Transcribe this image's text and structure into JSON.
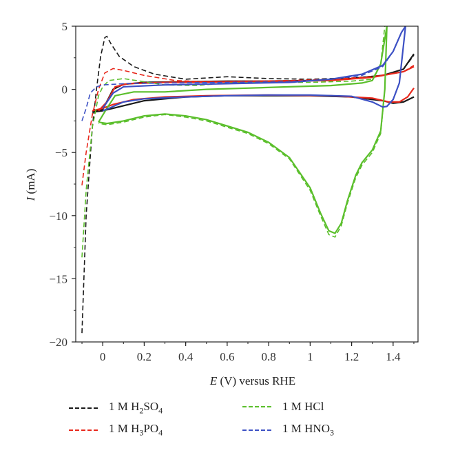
{
  "chart_data": {
    "type": "line",
    "title": "",
    "xlabel_italic": "E",
    "xlabel_rest": " (V) versus RHE",
    "ylabel_italic": "I",
    "ylabel_rest": " (mA)",
    "xlim": [
      -0.13,
      1.52
    ],
    "ylim": [
      -20,
      5
    ],
    "x_ticks": [
      "0",
      "0.2",
      "0.4",
      "0.6",
      "0.8",
      "1",
      "1.2",
      "1.4"
    ],
    "y_ticks": [
      "5",
      "0",
      "−5",
      "−10",
      "−15",
      "−20"
    ],
    "legend_placement": "below",
    "series": [
      {
        "name": "1 M H₂SO₄",
        "color": "#1a1a1a",
        "anodic": [
          [
            -0.1,
            -19.3
          ],
          [
            -0.08,
            -10
          ],
          [
            -0.05,
            -3
          ],
          [
            -0.03,
            0
          ],
          [
            -0.01,
            2.6
          ],
          [
            0.01,
            4.1
          ],
          [
            0.02,
            4.2
          ],
          [
            0.04,
            3.6
          ],
          [
            0.08,
            2.6
          ],
          [
            0.15,
            1.8
          ],
          [
            0.25,
            1.2
          ],
          [
            0.4,
            0.8
          ],
          [
            0.6,
            1.0
          ],
          [
            0.8,
            0.85
          ],
          [
            1.0,
            0.8
          ],
          [
            1.2,
            0.9
          ],
          [
            1.35,
            1.1
          ],
          [
            1.45,
            1.6
          ],
          [
            1.5,
            2.7
          ]
        ],
        "anodic_solid": [
          [
            -0.05,
            -1.8
          ],
          [
            0.0,
            -1.6
          ],
          [
            0.05,
            0.0
          ],
          [
            0.1,
            0.4
          ],
          [
            0.2,
            0.55
          ],
          [
            0.4,
            0.6
          ],
          [
            0.6,
            0.65
          ],
          [
            0.8,
            0.65
          ],
          [
            1.0,
            0.7
          ],
          [
            1.2,
            0.85
          ],
          [
            1.35,
            1.1
          ],
          [
            1.45,
            1.6
          ],
          [
            1.5,
            2.8
          ]
        ],
        "cathodic": [
          [
            1.5,
            -0.6
          ],
          [
            1.45,
            -1.0
          ],
          [
            1.4,
            -1.1
          ],
          [
            1.35,
            -0.9
          ],
          [
            1.2,
            -0.6
          ],
          [
            1.0,
            -0.5
          ],
          [
            0.8,
            -0.5
          ],
          [
            0.6,
            -0.5
          ],
          [
            0.4,
            -0.6
          ],
          [
            0.2,
            -0.9
          ],
          [
            0.05,
            -1.5
          ],
          [
            0.0,
            -1.7
          ],
          [
            -0.05,
            -1.8
          ]
        ]
      },
      {
        "name": "1 M H₃PO₄",
        "color": "#e8281c",
        "anodic": [
          [
            -0.1,
            -7.6
          ],
          [
            -0.08,
            -5
          ],
          [
            -0.05,
            -2
          ],
          [
            -0.02,
            0
          ],
          [
            0.01,
            1.3
          ],
          [
            0.05,
            1.65
          ],
          [
            0.1,
            1.5
          ],
          [
            0.2,
            1.1
          ],
          [
            0.35,
            0.7
          ],
          [
            0.5,
            0.6
          ],
          [
            0.7,
            0.65
          ],
          [
            0.9,
            0.7
          ],
          [
            1.1,
            0.8
          ],
          [
            1.3,
            1.0
          ],
          [
            1.45,
            1.4
          ],
          [
            1.5,
            1.9
          ]
        ],
        "anodic_solid": [
          [
            -0.02,
            -1.7
          ],
          [
            0.02,
            -1.0
          ],
          [
            0.06,
            0.2
          ],
          [
            0.12,
            0.45
          ],
          [
            0.3,
            0.55
          ],
          [
            0.6,
            0.6
          ],
          [
            0.9,
            0.65
          ],
          [
            1.1,
            0.7
          ],
          [
            1.3,
            0.95
          ],
          [
            1.45,
            1.4
          ],
          [
            1.5,
            1.8
          ]
        ],
        "cathodic": [
          [
            1.5,
            0.1
          ],
          [
            1.47,
            -0.6
          ],
          [
            1.43,
            -1.0
          ],
          [
            1.38,
            -1.0
          ],
          [
            1.3,
            -0.7
          ],
          [
            1.1,
            -0.5
          ],
          [
            0.8,
            -0.45
          ],
          [
            0.5,
            -0.5
          ],
          [
            0.3,
            -0.6
          ],
          [
            0.15,
            -0.8
          ],
          [
            0.05,
            -1.2
          ],
          [
            0.0,
            -1.5
          ],
          [
            -0.05,
            -1.7
          ]
        ]
      },
      {
        "name": "1 M HCl",
        "color": "#5bbf2c",
        "anodic": [
          [
            -0.1,
            -13.3
          ],
          [
            -0.08,
            -8
          ],
          [
            -0.05,
            -3
          ],
          [
            -0.02,
            -0.5
          ],
          [
            0.0,
            0.2
          ],
          [
            0.03,
            0.7
          ],
          [
            0.1,
            0.85
          ],
          [
            0.2,
            0.6
          ],
          [
            0.3,
            0.35
          ],
          [
            0.45,
            0.3
          ],
          [
            0.6,
            0.5
          ],
          [
            0.8,
            0.55
          ],
          [
            1.0,
            0.55
          ],
          [
            1.2,
            0.65
          ],
          [
            1.3,
            0.8
          ],
          [
            1.34,
            2.0
          ],
          [
            1.36,
            5.0
          ]
        ],
        "anodic_solid": [
          [
            -0.02,
            -2.6
          ],
          [
            0.02,
            -1.5
          ],
          [
            0.06,
            -0.5
          ],
          [
            0.15,
            -0.2
          ],
          [
            0.3,
            -0.2
          ],
          [
            0.5,
            0.0
          ],
          [
            0.7,
            0.1
          ],
          [
            0.9,
            0.2
          ],
          [
            1.1,
            0.3
          ],
          [
            1.25,
            0.5
          ],
          [
            1.3,
            0.7
          ],
          [
            1.34,
            2.0
          ],
          [
            1.37,
            5.0
          ]
        ],
        "cathodic": [
          [
            1.37,
            5.0
          ],
          [
            1.36,
            0.0
          ],
          [
            1.34,
            -3.5
          ],
          [
            1.3,
            -5.0
          ],
          [
            1.25,
            -6.0
          ],
          [
            1.22,
            -7.0
          ],
          [
            1.18,
            -9.0
          ],
          [
            1.15,
            -10.8
          ],
          [
            1.12,
            -11.7
          ],
          [
            1.09,
            -11.5
          ],
          [
            1.05,
            -10.0
          ],
          [
            1.0,
            -8.0
          ],
          [
            0.9,
            -5.5
          ],
          [
            0.8,
            -4.3
          ],
          [
            0.7,
            -3.5
          ],
          [
            0.6,
            -3.0
          ],
          [
            0.5,
            -2.5
          ],
          [
            0.4,
            -2.2
          ],
          [
            0.3,
            -2.0
          ],
          [
            0.2,
            -2.2
          ],
          [
            0.1,
            -2.6
          ],
          [
            0.02,
            -2.8
          ],
          [
            -0.02,
            -2.7
          ]
        ],
        "cathodic_solid": [
          [
            1.37,
            5.0
          ],
          [
            1.36,
            0.0
          ],
          [
            1.34,
            -3.3
          ],
          [
            1.3,
            -4.8
          ],
          [
            1.25,
            -5.8
          ],
          [
            1.22,
            -6.8
          ],
          [
            1.18,
            -8.8
          ],
          [
            1.15,
            -10.6
          ],
          [
            1.12,
            -11.4
          ],
          [
            1.09,
            -11.2
          ],
          [
            1.05,
            -9.8
          ],
          [
            1.0,
            -7.8
          ],
          [
            0.9,
            -5.4
          ],
          [
            0.8,
            -4.2
          ],
          [
            0.7,
            -3.4
          ],
          [
            0.6,
            -2.9
          ],
          [
            0.5,
            -2.4
          ],
          [
            0.4,
            -2.1
          ],
          [
            0.3,
            -1.95
          ],
          [
            0.2,
            -2.1
          ],
          [
            0.1,
            -2.5
          ],
          [
            0.02,
            -2.7
          ],
          [
            -0.02,
            -2.6
          ]
        ]
      },
      {
        "name": "1 M HNO₃",
        "color": "#3c50c4",
        "anodic": [
          [
            -0.1,
            -2.5
          ],
          [
            -0.08,
            -1.5
          ],
          [
            -0.06,
            -0.3
          ],
          [
            -0.03,
            0.2
          ],
          [
            0.0,
            0.35
          ],
          [
            0.1,
            0.45
          ],
          [
            0.3,
            0.5
          ],
          [
            0.6,
            0.55
          ],
          [
            0.9,
            0.6
          ],
          [
            1.1,
            0.8
          ],
          [
            1.25,
            1.1
          ],
          [
            1.35,
            1.8
          ],
          [
            1.4,
            3.0
          ],
          [
            1.44,
            4.5
          ],
          [
            1.46,
            5.0
          ]
        ],
        "anodic_solid": [
          [
            0.0,
            -1.5
          ],
          [
            0.05,
            -0.3
          ],
          [
            0.1,
            0.2
          ],
          [
            0.3,
            0.35
          ],
          [
            0.6,
            0.45
          ],
          [
            0.9,
            0.55
          ],
          [
            1.1,
            0.8
          ],
          [
            1.25,
            1.2
          ],
          [
            1.35,
            1.9
          ],
          [
            1.4,
            3.0
          ],
          [
            1.44,
            4.5
          ],
          [
            1.46,
            5.0
          ]
        ],
        "cathodic": [
          [
            1.46,
            5.0
          ],
          [
            1.43,
            0.5
          ],
          [
            1.4,
            -0.8
          ],
          [
            1.37,
            -1.35
          ],
          [
            1.35,
            -1.4
          ],
          [
            1.3,
            -1.0
          ],
          [
            1.2,
            -0.55
          ],
          [
            1.0,
            -0.45
          ],
          [
            0.8,
            -0.45
          ],
          [
            0.6,
            -0.5
          ],
          [
            0.4,
            -0.6
          ],
          [
            0.2,
            -0.75
          ],
          [
            0.1,
            -1.0
          ],
          [
            0.03,
            -1.5
          ],
          [
            0.0,
            -1.7
          ]
        ]
      }
    ]
  }
}
